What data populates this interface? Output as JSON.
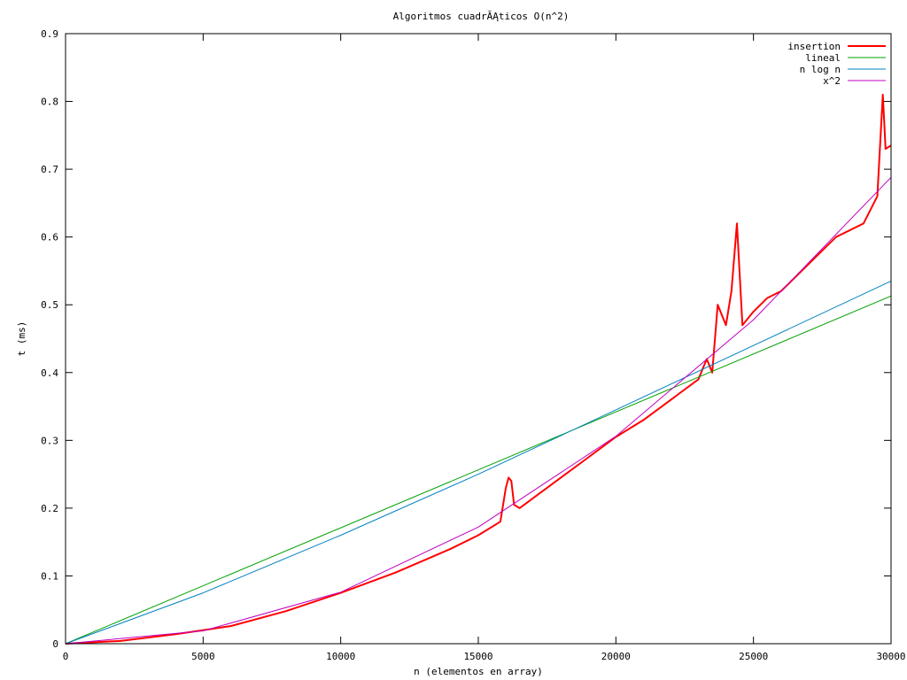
{
  "chart_data": {
    "type": "line",
    "title": "Algoritmos cuadrĂĄticos O(n^2)",
    "xlabel": "n (elementos en array)",
    "ylabel": "t (ms)",
    "xlim": [
      0,
      30000
    ],
    "ylim": [
      0,
      0.9
    ],
    "xticks": [
      "0",
      "5000",
      "10000",
      "15000",
      "20000",
      "25000",
      "30000"
    ],
    "yticks": [
      "0",
      "0.1",
      "0.2",
      "0.3",
      "0.4",
      "0.5",
      "0.6",
      "0.7",
      "0.8",
      "0.9"
    ],
    "grid": false,
    "legend_position": "top-right",
    "series": [
      {
        "name": "insertion",
        "color": "#ff0000",
        "x": [
          0,
          2000,
          4000,
          5000,
          6000,
          8000,
          10000,
          12000,
          14000,
          15000,
          15800,
          16000,
          16100,
          16200,
          16300,
          16500,
          17000,
          18000,
          19000,
          20000,
          21000,
          22000,
          23000,
          23300,
          23500,
          23700,
          24000,
          24200,
          24400,
          24600,
          25000,
          25500,
          26000,
          27000,
          28000,
          29000,
          29500,
          29700,
          29800,
          30000
        ],
        "y": [
          0,
          0.004,
          0.014,
          0.02,
          0.026,
          0.048,
          0.075,
          0.105,
          0.14,
          0.16,
          0.18,
          0.23,
          0.245,
          0.24,
          0.205,
          0.2,
          0.215,
          0.245,
          0.275,
          0.305,
          0.33,
          0.36,
          0.39,
          0.42,
          0.4,
          0.5,
          0.47,
          0.52,
          0.62,
          0.47,
          0.49,
          0.51,
          0.52,
          0.56,
          0.6,
          0.62,
          0.66,
          0.81,
          0.73,
          0.735
        ]
      },
      {
        "name": "lineal",
        "color": "#00a000",
        "x": [
          0,
          30000
        ],
        "y": [
          0,
          0.513
        ]
      },
      {
        "name": "n log n",
        "color": "#0080c0",
        "x": [
          0,
          5000,
          10000,
          15000,
          20000,
          25000,
          30000
        ],
        "y": [
          0,
          0.075,
          0.16,
          0.25,
          0.345,
          0.44,
          0.535
        ]
      },
      {
        "name": "x^2",
        "color": "#c000c0",
        "x": [
          0,
          5000,
          10000,
          15000,
          20000,
          25000,
          30000
        ],
        "y": [
          0,
          0.019,
          0.076,
          0.172,
          0.306,
          0.478,
          0.688
        ]
      }
    ]
  }
}
